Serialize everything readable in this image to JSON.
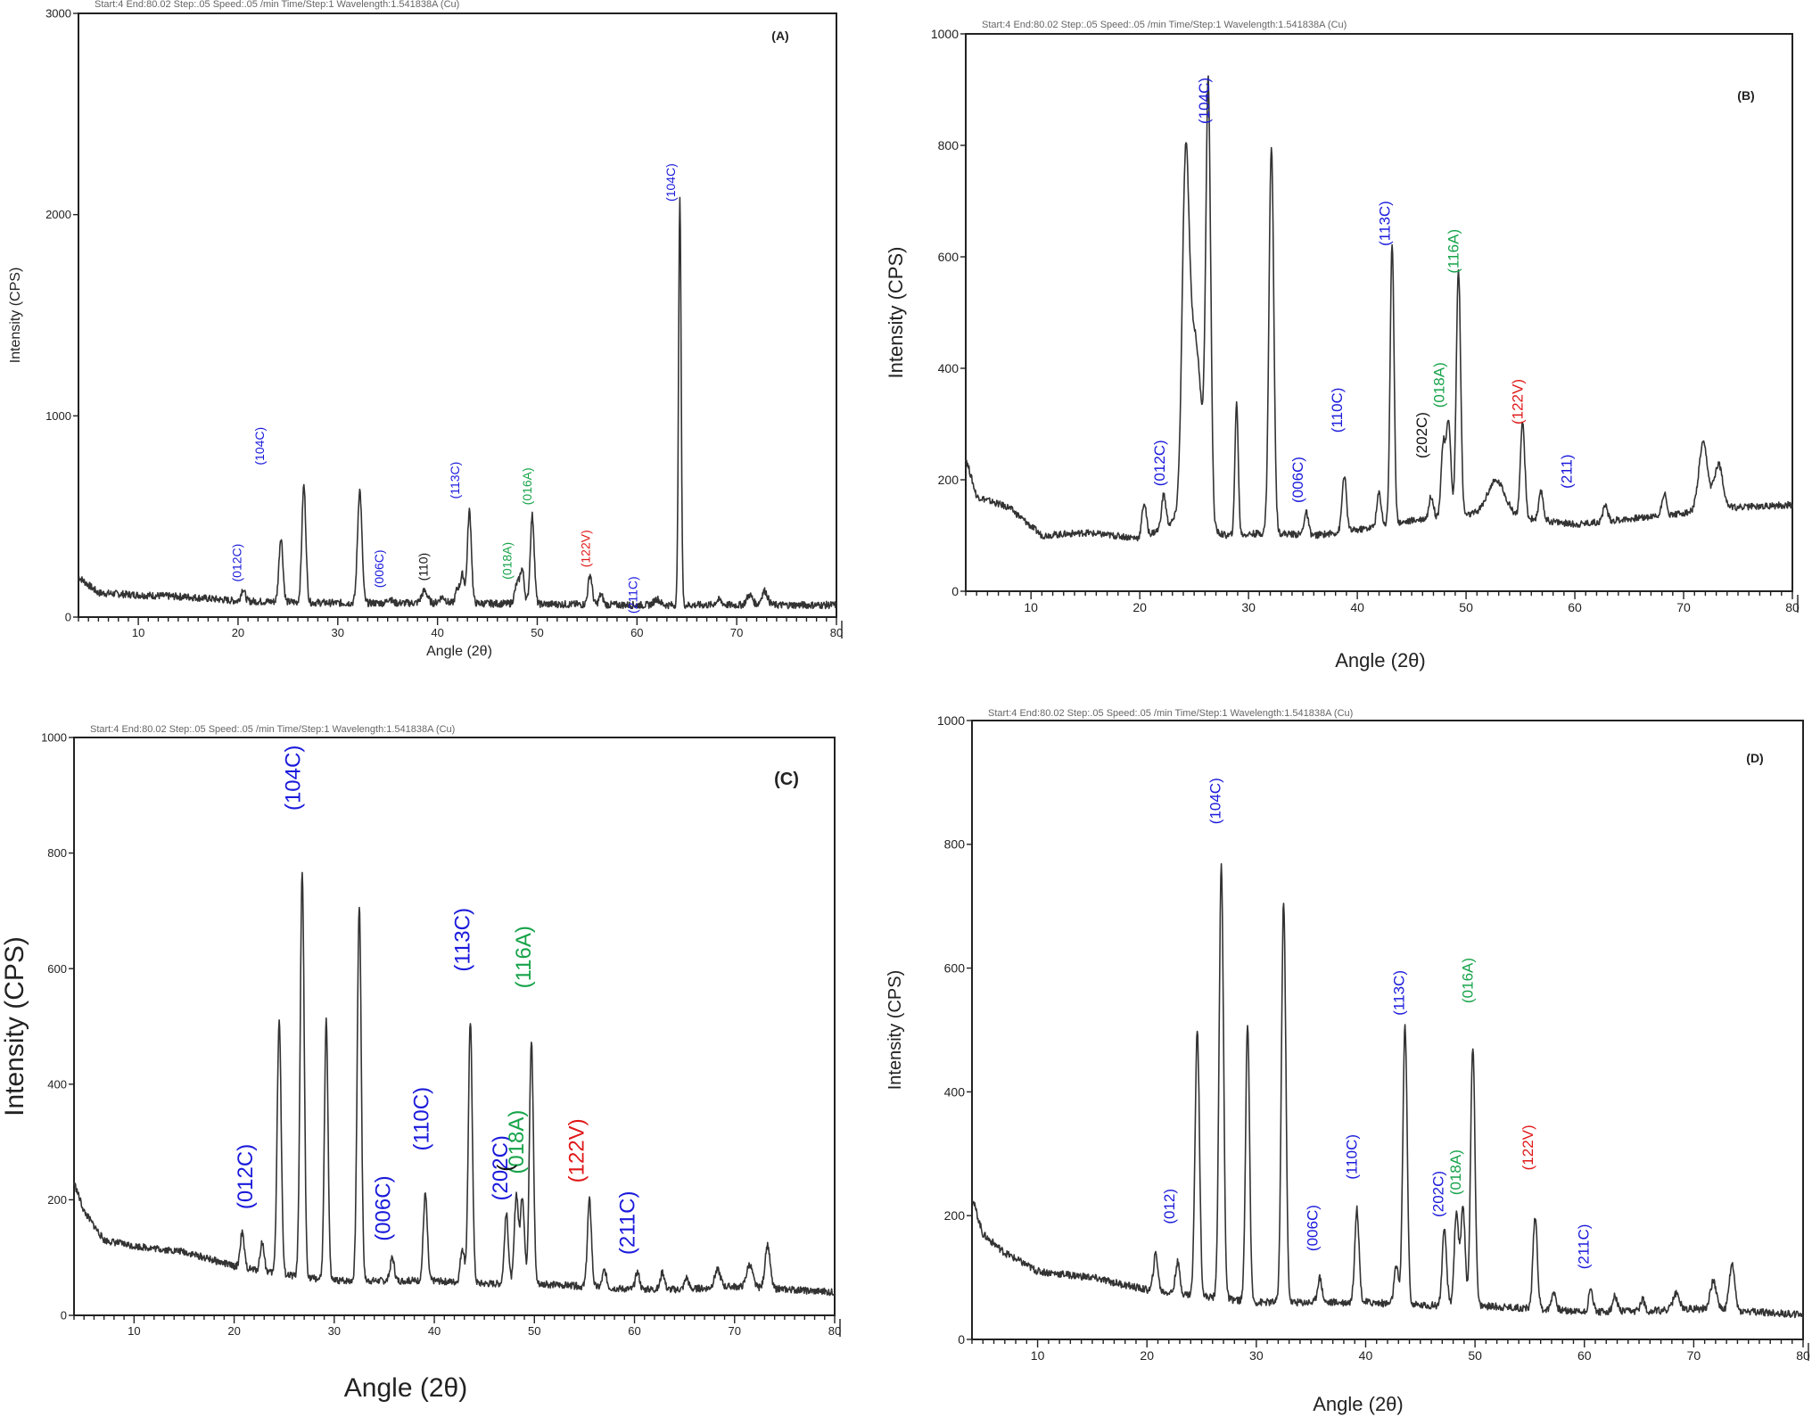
{
  "chart_data": [
    {
      "type": "line",
      "panel_label": "(A)",
      "header_text": "Start:4   End:80.02   Step:.05   Speed:.05 /min   Time/Step:1   Wavelength:1.541838A (Cu)",
      "xlabel": "Angle (2θ)",
      "ylabel": "Intensity (CPS)",
      "xlim": [
        4,
        80
      ],
      "ylim": [
        0,
        3000
      ],
      "xticks": [
        10,
        20,
        30,
        40,
        50,
        60,
        70,
        80
      ],
      "yticks": [
        0,
        1000,
        2000,
        3000
      ],
      "ytick_labels": [
        "0",
        "1000",
        "2000",
        "3000"
      ],
      "baseline": [
        [
          4,
          200
        ],
        [
          6,
          120
        ],
        [
          10,
          110
        ],
        [
          15,
          100
        ],
        [
          20,
          80
        ],
        [
          30,
          70
        ],
        [
          40,
          70
        ],
        [
          50,
          65
        ],
        [
          60,
          60
        ],
        [
          70,
          60
        ],
        [
          80,
          60
        ]
      ],
      "peaks": [
        {
          "x": 20.5,
          "y": 60,
          "w": 0.2
        },
        {
          "x": 24.3,
          "y": 320,
          "w": 0.2
        },
        {
          "x": 26.6,
          "y": 580,
          "w": 0.2
        },
        {
          "x": 32.2,
          "y": 560,
          "w": 0.22
        },
        {
          "x": 35.2,
          "y": 25,
          "w": 0.2
        },
        {
          "x": 38.7,
          "y": 60,
          "w": 0.3
        },
        {
          "x": 40.5,
          "y": 30,
          "w": 0.3
        },
        {
          "x": 42.0,
          "y": 70,
          "w": 0.2
        },
        {
          "x": 42.5,
          "y": 140,
          "w": 0.2
        },
        {
          "x": 43.2,
          "y": 460,
          "w": 0.2
        },
        {
          "x": 48.0,
          "y": 100,
          "w": 0.25
        },
        {
          "x": 48.5,
          "y": 160,
          "w": 0.2
        },
        {
          "x": 49.5,
          "y": 440,
          "w": 0.2
        },
        {
          "x": 55.3,
          "y": 150,
          "w": 0.2
        },
        {
          "x": 56.4,
          "y": 50,
          "w": 0.2
        },
        {
          "x": 62.0,
          "y": 30,
          "w": 0.3
        },
        {
          "x": 64.3,
          "y": 2010,
          "w": 0.13
        },
        {
          "x": 68.2,
          "y": 25,
          "w": 0.3
        },
        {
          "x": 71.3,
          "y": 50,
          "w": 0.3
        },
        {
          "x": 72.8,
          "y": 70,
          "w": 0.3
        }
      ],
      "annotations": [
        {
          "text": "(012C)",
          "x": 20.3,
          "y": 270,
          "color": "#1a1adb"
        },
        {
          "text": "(104C)",
          "x": 22.6,
          "y": 850,
          "color": "#1a1adb"
        },
        {
          "text": "(006C)",
          "x": 34.6,
          "y": 240,
          "color": "#1a1adb"
        },
        {
          "text": "(110)",
          "x": 39.0,
          "y": 250,
          "color": "#111111"
        },
        {
          "text": "(113C)",
          "x": 42.2,
          "y": 680,
          "color": "#1a1adb"
        },
        {
          "text": "(018A)",
          "x": 47.4,
          "y": 280,
          "color": "#17a34a"
        },
        {
          "text": "(016A)",
          "x": 49.4,
          "y": 650,
          "color": "#17a34a"
        },
        {
          "text": "(122V)",
          "x": 55.3,
          "y": 340,
          "color": "#e01818"
        },
        {
          "text": "(211C)",
          "x": 60.0,
          "y": 110,
          "color": "#1a1adb"
        },
        {
          "text": "(104C)",
          "x": 63.8,
          "y": 2160,
          "color": "#1a1adb"
        }
      ]
    },
    {
      "type": "line",
      "panel_label": "(B)",
      "header_text": "Start:4   End:80.02   Step:.05   Speed:.05 /min   Time/Step:1   Wavelength:1.541838A (Cu)",
      "xlabel": "Angle (2θ)",
      "ylabel": "Intensity (CPS)",
      "xlim": [
        4,
        80
      ],
      "ylim": [
        0,
        1000
      ],
      "xticks": [
        10,
        20,
        30,
        40,
        50,
        60,
        70,
        80
      ],
      "yticks": [
        0,
        200,
        400,
        600,
        800,
        1000
      ],
      "ytick_labels": [
        "0",
        "200",
        "400",
        "600",
        "800",
        "1000"
      ],
      "baseline": [
        [
          4,
          240
        ],
        [
          5,
          170
        ],
        [
          8,
          150
        ],
        [
          11,
          100
        ],
        [
          15,
          105
        ],
        [
          20,
          95
        ],
        [
          23,
          120
        ],
        [
          28,
          100
        ],
        [
          32,
          105
        ],
        [
          36,
          100
        ],
        [
          40,
          110
        ],
        [
          46,
          130
        ],
        [
          52,
          140
        ],
        [
          56,
          130
        ],
        [
          60,
          120
        ],
        [
          65,
          130
        ],
        [
          70,
          140
        ],
        [
          74,
          150
        ],
        [
          80,
          155
        ]
      ],
      "peaks": [
        {
          "x": 20.4,
          "y": 60,
          "w": 0.2
        },
        {
          "x": 22.2,
          "y": 60,
          "w": 0.2
        },
        {
          "x": 24.2,
          "y": 500,
          "w": 0.3
        },
        {
          "x": 25.0,
          "y": 350,
          "w": 0.7
        },
        {
          "x": 26.3,
          "y": 750,
          "w": 0.22
        },
        {
          "x": 28.9,
          "y": 240,
          "w": 0.15
        },
        {
          "x": 32.1,
          "y": 690,
          "w": 0.22
        },
        {
          "x": 35.3,
          "y": 40,
          "w": 0.2
        },
        {
          "x": 38.8,
          "y": 100,
          "w": 0.2
        },
        {
          "x": 42.0,
          "y": 60,
          "w": 0.2
        },
        {
          "x": 43.2,
          "y": 500,
          "w": 0.18
        },
        {
          "x": 46.8,
          "y": 40,
          "w": 0.2
        },
        {
          "x": 47.9,
          "y": 130,
          "w": 0.2
        },
        {
          "x": 48.4,
          "y": 170,
          "w": 0.2
        },
        {
          "x": 49.3,
          "y": 440,
          "w": 0.2
        },
        {
          "x": 52.8,
          "y": 60,
          "w": 0.8
        },
        {
          "x": 55.2,
          "y": 170,
          "w": 0.2
        },
        {
          "x": 56.9,
          "y": 50,
          "w": 0.2
        },
        {
          "x": 62.8,
          "y": 30,
          "w": 0.2
        },
        {
          "x": 68.2,
          "y": 40,
          "w": 0.2
        },
        {
          "x": 71.8,
          "y": 120,
          "w": 0.4
        },
        {
          "x": 73.2,
          "y": 80,
          "w": 0.4
        }
      ],
      "annotations": [
        {
          "text": "(012C)",
          "x": 22.3,
          "y": 230,
          "color": "#1a1adb"
        },
        {
          "text": "(104C)",
          "x": 26.4,
          "y": 880,
          "color": "#1a1adb"
        },
        {
          "text": "(006C)",
          "x": 35.0,
          "y": 200,
          "color": "#1a1adb"
        },
        {
          "text": "(110C)",
          "x": 38.6,
          "y": 325,
          "color": "#1a1adb"
        },
        {
          "text": "(113C)",
          "x": 43.0,
          "y": 660,
          "color": "#1a1adb"
        },
        {
          "text": "(202C)",
          "x": 46.4,
          "y": 280,
          "color": "#111111"
        },
        {
          "text": "(018A)",
          "x": 48.0,
          "y": 370,
          "color": "#17a34a"
        },
        {
          "text": "(116A)",
          "x": 49.3,
          "y": 610,
          "color": "#17a34a"
        },
        {
          "text": "(122V)",
          "x": 55.2,
          "y": 340,
          "color": "#e01818"
        },
        {
          "text": "(211)",
          "x": 59.7,
          "y": 215,
          "color": "#1a1adb"
        }
      ]
    },
    {
      "type": "line",
      "panel_label": "(C)",
      "header_text": "Start:4   End:80.02   Step:.05   Speed:.05 /min   Time/Step:1   Wavelength:1.541838A (Cu)",
      "xlabel": "Angle (2θ)",
      "ylabel": "Intensity (CPS)",
      "xlim": [
        4,
        80
      ],
      "ylim": [
        0,
        1000
      ],
      "xticks": [
        10,
        20,
        30,
        40,
        50,
        60,
        70,
        80
      ],
      "yticks": [
        0,
        200,
        400,
        600,
        800,
        1000
      ],
      "ytick_labels": [
        "0",
        "200",
        "400",
        "600",
        "800",
        "1000"
      ],
      "baseline": [
        [
          4,
          230
        ],
        [
          5,
          180
        ],
        [
          7,
          130
        ],
        [
          10,
          120
        ],
        [
          15,
          110
        ],
        [
          20,
          85
        ],
        [
          25,
          70
        ],
        [
          30,
          60
        ],
        [
          35,
          60
        ],
        [
          40,
          60
        ],
        [
          45,
          55
        ],
        [
          50,
          55
        ],
        [
          55,
          50
        ],
        [
          60,
          45
        ],
        [
          65,
          45
        ],
        [
          70,
          50
        ],
        [
          75,
          45
        ],
        [
          80,
          40
        ]
      ],
      "peaks": [
        {
          "x": 20.8,
          "y": 60,
          "w": 0.2
        },
        {
          "x": 22.8,
          "y": 50,
          "w": 0.2
        },
        {
          "x": 24.5,
          "y": 440,
          "w": 0.2
        },
        {
          "x": 26.8,
          "y": 700,
          "w": 0.2
        },
        {
          "x": 29.2,
          "y": 450,
          "w": 0.18
        },
        {
          "x": 32.5,
          "y": 650,
          "w": 0.2
        },
        {
          "x": 35.8,
          "y": 40,
          "w": 0.2
        },
        {
          "x": 39.1,
          "y": 150,
          "w": 0.2
        },
        {
          "x": 42.8,
          "y": 60,
          "w": 0.2
        },
        {
          "x": 43.6,
          "y": 450,
          "w": 0.2
        },
        {
          "x": 47.2,
          "y": 120,
          "w": 0.2
        },
        {
          "x": 48.2,
          "y": 155,
          "w": 0.2
        },
        {
          "x": 48.8,
          "y": 150,
          "w": 0.2
        },
        {
          "x": 49.7,
          "y": 420,
          "w": 0.2
        },
        {
          "x": 55.5,
          "y": 150,
          "w": 0.2
        },
        {
          "x": 57.0,
          "y": 30,
          "w": 0.2
        },
        {
          "x": 60.3,
          "y": 30,
          "w": 0.2
        },
        {
          "x": 62.8,
          "y": 30,
          "w": 0.2
        },
        {
          "x": 65.2,
          "y": 20,
          "w": 0.2
        },
        {
          "x": 68.3,
          "y": 30,
          "w": 0.3
        },
        {
          "x": 71.5,
          "y": 40,
          "w": 0.3
        },
        {
          "x": 73.3,
          "y": 75,
          "w": 0.25
        }
      ],
      "annotations": [
        {
          "text": "(012C)",
          "x": 21.8,
          "y": 240,
          "color": "#1a1adb"
        },
        {
          "text": "(104C)",
          "x": 26.6,
          "y": 930,
          "color": "#1a1adb"
        },
        {
          "text": "(006C)",
          "x": 35.6,
          "y": 185,
          "color": "#1a1adb"
        },
        {
          "text": "(110C)",
          "x": 39.4,
          "y": 340,
          "color": "#1a1adb"
        },
        {
          "text": "(113C)",
          "x": 43.5,
          "y": 650,
          "color": "#1a1adb"
        },
        {
          "text": "(202C)",
          "x": 47.3,
          "y": 255,
          "color": "#1a1adb"
        },
        {
          "text": "(018A)",
          "x": 48.9,
          "y": 300,
          "color": "#17a34a"
        },
        {
          "text": "(",
          "x": 47.8,
          "y": 255,
          "color": "#111111"
        },
        {
          "text": "(116A)",
          "x": 49.6,
          "y": 620,
          "color": "#17a34a"
        },
        {
          "text": "(122V)",
          "x": 54.9,
          "y": 285,
          "color": "#e01818"
        },
        {
          "text": "(211C)",
          "x": 60.0,
          "y": 160,
          "color": "#1a1adb"
        }
      ]
    },
    {
      "type": "line",
      "panel_label": "(D)",
      "header_text": "Start:4   End:80.02   Step:.05   Speed:.05 /min   Time/Step:1   Wavelength:1.541838A (Cu)",
      "xlabel": "Angle (2θ)",
      "ylabel": "Intensity (CPS)",
      "xlim": [
        4,
        80
      ],
      "ylim": [
        0,
        1000
      ],
      "xticks": [
        10,
        20,
        30,
        40,
        50,
        60,
        70,
        80
      ],
      "yticks": [
        0,
        200,
        400,
        600,
        800,
        1000
      ],
      "ytick_labels": [
        "0",
        "200",
        "400",
        "600",
        "800",
        "1000"
      ],
      "baseline": [
        [
          4,
          230
        ],
        [
          5,
          170
        ],
        [
          7,
          140
        ],
        [
          10,
          110
        ],
        [
          15,
          100
        ],
        [
          20,
          80
        ],
        [
          25,
          70
        ],
        [
          30,
          60
        ],
        [
          35,
          60
        ],
        [
          40,
          60
        ],
        [
          45,
          55
        ],
        [
          50,
          55
        ],
        [
          55,
          50
        ],
        [
          60,
          45
        ],
        [
          65,
          45
        ],
        [
          70,
          50
        ],
        [
          75,
          45
        ],
        [
          80,
          40
        ]
      ],
      "peaks": [
        {
          "x": 20.8,
          "y": 60,
          "w": 0.2
        },
        {
          "x": 22.8,
          "y": 50,
          "w": 0.2
        },
        {
          "x": 24.6,
          "y": 430,
          "w": 0.2
        },
        {
          "x": 26.8,
          "y": 700,
          "w": 0.2
        },
        {
          "x": 29.2,
          "y": 450,
          "w": 0.18
        },
        {
          "x": 32.5,
          "y": 650,
          "w": 0.2
        },
        {
          "x": 35.8,
          "y": 40,
          "w": 0.2
        },
        {
          "x": 39.2,
          "y": 150,
          "w": 0.2
        },
        {
          "x": 42.8,
          "y": 60,
          "w": 0.2
        },
        {
          "x": 43.6,
          "y": 450,
          "w": 0.2
        },
        {
          "x": 47.2,
          "y": 120,
          "w": 0.2
        },
        {
          "x": 48.3,
          "y": 150,
          "w": 0.2
        },
        {
          "x": 48.9,
          "y": 155,
          "w": 0.2
        },
        {
          "x": 49.8,
          "y": 420,
          "w": 0.2
        },
        {
          "x": 55.5,
          "y": 150,
          "w": 0.2
        },
        {
          "x": 57.2,
          "y": 30,
          "w": 0.2
        },
        {
          "x": 60.6,
          "y": 35,
          "w": 0.2
        },
        {
          "x": 62.8,
          "y": 25,
          "w": 0.2
        },
        {
          "x": 65.3,
          "y": 20,
          "w": 0.2
        },
        {
          "x": 68.4,
          "y": 25,
          "w": 0.3
        },
        {
          "x": 71.8,
          "y": 45,
          "w": 0.3
        },
        {
          "x": 73.5,
          "y": 75,
          "w": 0.25
        }
      ],
      "annotations": [
        {
          "text": "(012)",
          "x": 22.5,
          "y": 215,
          "color": "#1a1adb"
        },
        {
          "text": "(104C)",
          "x": 26.7,
          "y": 870,
          "color": "#1a1adb"
        },
        {
          "text": "(006C)",
          "x": 35.6,
          "y": 180,
          "color": "#1a1adb"
        },
        {
          "text": "(110C)",
          "x": 39.2,
          "y": 295,
          "color": "#1a1adb"
        },
        {
          "text": "(113C)",
          "x": 43.5,
          "y": 560,
          "color": "#1a1adb"
        },
        {
          "text": "(202C)",
          "x": 47.1,
          "y": 235,
          "color": "#1a1adb"
        },
        {
          "text": "(018A)",
          "x": 48.7,
          "y": 270,
          "color": "#17a34a"
        },
        {
          "text": "(016A)",
          "x": 49.8,
          "y": 580,
          "color": "#17a34a"
        },
        {
          "text": "(122V)",
          "x": 55.3,
          "y": 310,
          "color": "#e01818"
        },
        {
          "text": "(211C)",
          "x": 60.4,
          "y": 150,
          "color": "#1a1adb"
        }
      ]
    }
  ]
}
